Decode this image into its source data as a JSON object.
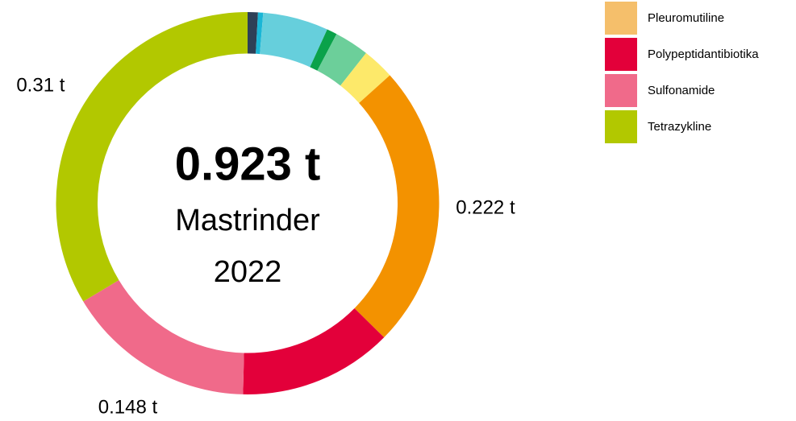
{
  "chart_data": {
    "type": "donut",
    "center_value": "0.923 t",
    "center_subtitle": "Mastrinder",
    "center_year": "2022",
    "categories": [
      null,
      null,
      null,
      null,
      null,
      null,
      null,
      "Polypeptidantibiotika",
      "Sulfonamide",
      "Tetrazykline"
    ],
    "values": [
      0.008,
      0.004,
      0.051,
      0.008,
      0.027,
      0.025,
      0.222,
      0.12,
      0.148,
      0.31
    ],
    "value_labels": [
      null,
      null,
      null,
      null,
      null,
      null,
      "0.222 t",
      null,
      "0.148 t",
      "0.31 t"
    ],
    "colors": [
      "#2e4057",
      "#1ab6d6",
      "#66cfdc",
      "#0aa24a",
      "#6ccf9a",
      "#fde96a",
      "#f39200",
      "#e3003a",
      "#f06a8a",
      "#b2c800"
    ],
    "legend": [
      {
        "name": "Pleuromutiline",
        "color": "#f5bf6b"
      },
      {
        "name": "Polypeptidantibiotika",
        "color": "#e3003a"
      },
      {
        "name": "Sulfonamide",
        "color": "#f06a8a"
      },
      {
        "name": "Tetrazykline",
        "color": "#b2c800"
      }
    ]
  }
}
